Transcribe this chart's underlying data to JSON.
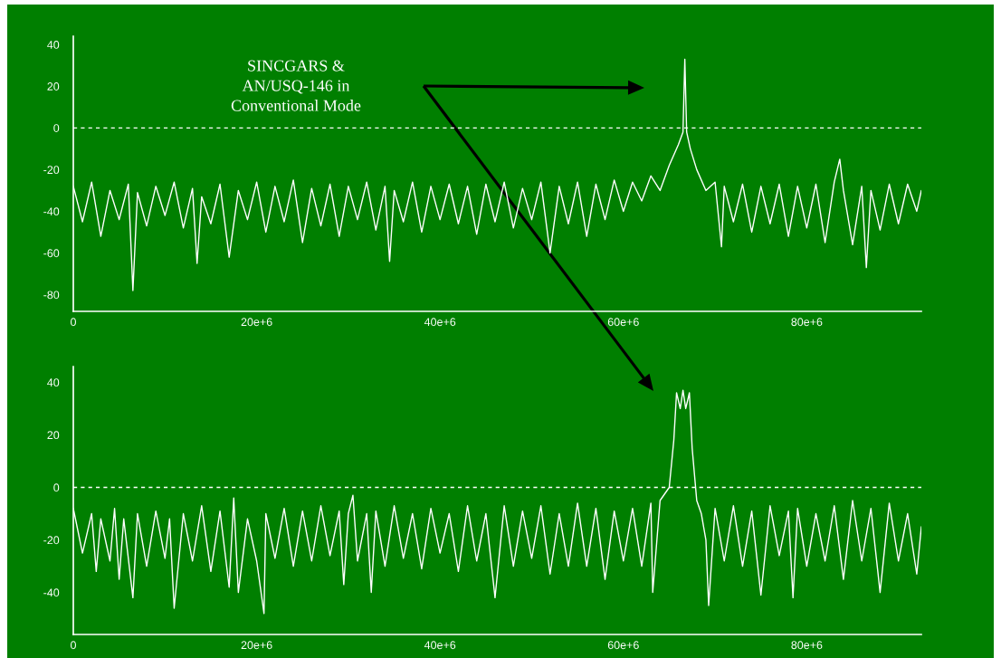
{
  "chart_data": [
    {
      "type": "line",
      "annotations": [
        "SINCGARS &\nAN/USQ-146 in\nConventional Mode"
      ],
      "x": [
        0,
        1000000.0,
        2000000.0,
        3000000.0,
        4000000.0,
        5000000.0,
        6000000.0,
        6500000.0,
        7000000.0,
        8000000.0,
        9000000.0,
        10000000.0,
        11000000.0,
        12000000.0,
        13000000.0,
        13500000.0,
        14000000.0,
        15000000.0,
        16000000.0,
        17000000.0,
        18000000.0,
        19000000.0,
        20000000.0,
        21000000.0,
        22000000.0,
        23000000.0,
        24000000.0,
        25000000.0,
        26000000.0,
        27000000.0,
        28000000.0,
        29000000.0,
        30000000.0,
        31000000.0,
        32000000.0,
        33000000.0,
        34000000.0,
        34500000.0,
        35000000.0,
        36000000.0,
        37000000.0,
        38000000.0,
        39000000.0,
        40000000.0,
        41000000.0,
        42000000.0,
        43000000.0,
        44000000.0,
        45000000.0,
        46000000.0,
        47000000.0,
        48000000.0,
        49000000.0,
        50000000.0,
        51000000.0,
        52000000.0,
        53000000.0,
        54000000.0,
        55000000.0,
        56000000.0,
        57000000.0,
        58000000.0,
        59000000.0,
        60000000.0,
        61000000.0,
        62000000.0,
        63000000.0,
        64000000.0,
        65000000.0,
        66000000.0,
        66500000.0,
        66700000.0,
        66900000.0,
        67300000.0,
        68000000.0,
        69000000.0,
        70000000.0,
        70700000.0,
        71000000.0,
        72000000.0,
        73000000.0,
        74000000.0,
        75000000.0,
        76000000.0,
        77000000.0,
        78000000.0,
        79000000.0,
        80000000.0,
        81000000.0,
        82000000.0,
        83000000.0,
        83600000.0,
        84000000.0,
        85000000.0,
        86000000.0,
        86500000.0,
        87000000.0,
        88000000.0,
        89000000.0,
        90000000.0,
        91000000.0,
        92000000.0,
        92500000.0
      ],
      "series": [
        {
          "color": "#ffffff",
          "values": [
            -28,
            -45,
            -26,
            -52,
            -30,
            -44,
            -27,
            -78,
            -31,
            -47,
            -28,
            -42,
            -26,
            -48,
            -29,
            -65,
            -33,
            -46,
            -27,
            -62,
            -30,
            -44,
            -26,
            -50,
            -28,
            -45,
            -25,
            -55,
            -29,
            -47,
            -27,
            -52,
            -28,
            -44,
            -26,
            -49,
            -28,
            -64,
            -30,
            -45,
            -26,
            -50,
            -28,
            -44,
            -27,
            -46,
            -28,
            -51,
            -27,
            -45,
            -26,
            -48,
            -29,
            -44,
            -26,
            -60,
            -28,
            -46,
            -26,
            -52,
            -27,
            -44,
            -25,
            -40,
            -26,
            -35,
            -23,
            -30,
            -18,
            -8,
            -2,
            33,
            -2,
            -10,
            -20,
            -30,
            -26,
            -57,
            -28,
            -45,
            -27,
            -50,
            -28,
            -46,
            -27,
            -52,
            -28,
            -48,
            -27,
            -55,
            -26,
            -15,
            -30,
            -56,
            -28,
            -67,
            -30,
            -49,
            -27,
            -46,
            -27,
            -40,
            -30
          ]
        }
      ],
      "xlim": [
        0,
        92500000.0
      ],
      "ylim": [
        -88,
        44
      ],
      "xticks": [
        0,
        {
          "value": 20000000.0,
          "label": "20e+6"
        },
        {
          "value": 40000000.0,
          "label": "40e+6"
        },
        {
          "value": 60000000.0,
          "label": "60e+6"
        },
        {
          "value": 80000000.0,
          "label": "80e+6"
        }
      ],
      "yticks": [
        -80,
        -60,
        -40,
        -20,
        0,
        20,
        40
      ],
      "ref_lines": [
        {
          "axis": "y",
          "value": 0,
          "color": "#ffffff",
          "line_style": "dashed"
        }
      ]
    },
    {
      "type": "line",
      "x": [
        0,
        1000000.0,
        2000000.0,
        2500000.0,
        3000000.0,
        4000000.0,
        4500000.0,
        5000000.0,
        5500000.0,
        6500000.0,
        7000000.0,
        8000000.0,
        9000000.0,
        10000000.0,
        10500000.0,
        11000000.0,
        12000000.0,
        13000000.0,
        14000000.0,
        15000000.0,
        16000000.0,
        17000000.0,
        17500000.0,
        18000000.0,
        19000000.0,
        20000000.0,
        20800000.0,
        21000000.0,
        22000000.0,
        23000000.0,
        24000000.0,
        25000000.0,
        26000000.0,
        27000000.0,
        28000000.0,
        29000000.0,
        29500000.0,
        30000000.0,
        30500000.0,
        31000000.0,
        32000000.0,
        32500000.0,
        33000000.0,
        34000000.0,
        35000000.0,
        36000000.0,
        37000000.0,
        38000000.0,
        39000000.0,
        40000000.0,
        41000000.0,
        42000000.0,
        43000000.0,
        44000000.0,
        45000000.0,
        46000000.0,
        47000000.0,
        48000000.0,
        49000000.0,
        50000000.0,
        51000000.0,
        52000000.0,
        53000000.0,
        54000000.0,
        55000000.0,
        56000000.0,
        57000000.0,
        58000000.0,
        59000000.0,
        60000000.0,
        61000000.0,
        62000000.0,
        63000000.0,
        63200000.0,
        64000000.0,
        65000000.0,
        65500000.0,
        65800000.0,
        66200000.0,
        66500000.0,
        66800000.0,
        67200000.0,
        67500000.0,
        68000000.0,
        68500000.0,
        69000000.0,
        69300000.0,
        70000000.0,
        71000000.0,
        72000000.0,
        73000000.0,
        74000000.0,
        75000000.0,
        76000000.0,
        77000000.0,
        78000000.0,
        78500000.0,
        79000000.0,
        80000000.0,
        81000000.0,
        82000000.0,
        83000000.0,
        84000000.0,
        85000000.0,
        86000000.0,
        87000000.0,
        88000000.0,
        89000000.0,
        90000000.0,
        91000000.0,
        92000000.0,
        92500000.0
      ],
      "series": [
        {
          "color": "#ffffff",
          "values": [
            -8,
            -25,
            -10,
            -32,
            -12,
            -28,
            -8,
            -35,
            -12,
            -42,
            -10,
            -30,
            -9,
            -27,
            -12,
            -46,
            -10,
            -28,
            -7,
            -32,
            -9,
            -38,
            -4,
            -40,
            -12,
            -28,
            -48,
            -10,
            -27,
            -8,
            -30,
            -9,
            -28,
            -7,
            -26,
            -9,
            -37,
            -10,
            -3,
            -28,
            -10,
            -40,
            -9,
            -30,
            -7,
            -27,
            -10,
            -31,
            -8,
            -25,
            -10,
            -32,
            -7,
            -28,
            -10,
            -42,
            -7,
            -30,
            -9,
            -27,
            -7,
            -33,
            -10,
            -30,
            -6,
            -30,
            -8,
            -35,
            -9,
            -28,
            -8,
            -30,
            -6,
            -40,
            -5,
            0,
            18,
            36,
            30,
            37,
            30,
            36,
            15,
            -5,
            -10,
            -20,
            -45,
            -8,
            -28,
            -7,
            -30,
            -9,
            -41,
            -7,
            -26,
            -9,
            -42,
            -8,
            -30,
            -10,
            -28,
            -7,
            -35,
            -5,
            -28,
            -8,
            -40,
            -6,
            -28,
            -10,
            -33,
            -15
          ]
        }
      ],
      "xlim": [
        0,
        92500000.0
      ],
      "ylim": [
        -56,
        46
      ],
      "xticks": [
        0,
        {
          "value": 20000000.0,
          "label": "20e+6"
        },
        {
          "value": 40000000.0,
          "label": "40e+6"
        },
        {
          "value": 60000000.0,
          "label": "60e+6"
        },
        {
          "value": 80000000.0,
          "label": "80e+6"
        }
      ],
      "yticks": [
        -40,
        -20,
        0,
        20,
        40
      ],
      "ref_lines": [
        {
          "axis": "y",
          "value": 0,
          "color": "#ffffff",
          "line_style": "dashed"
        }
      ]
    }
  ]
}
